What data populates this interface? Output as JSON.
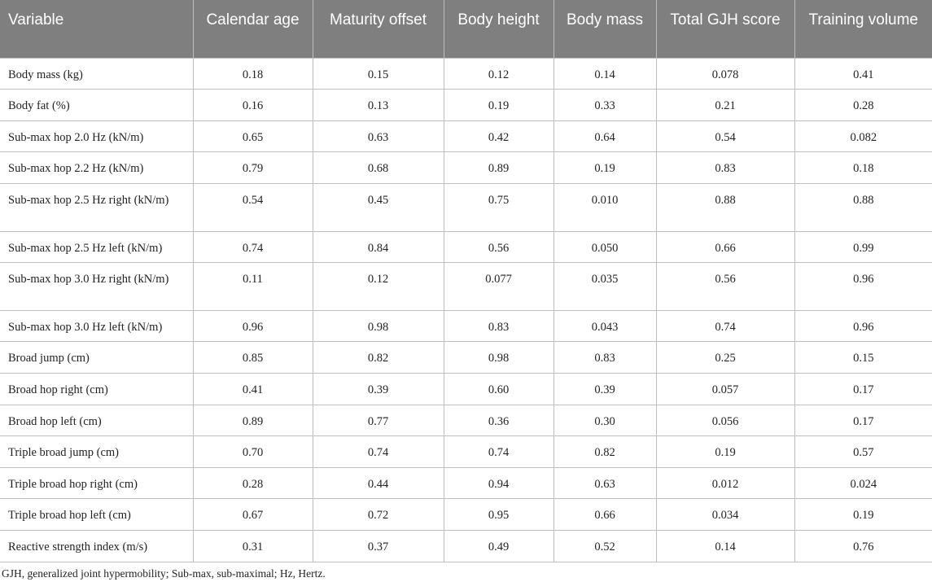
{
  "columns": [
    "Variable",
    "Calendar age",
    "Maturity offset",
    "Body height",
    "Body mass",
    "Total GJH score",
    "Training volume"
  ],
  "rows": [
    {
      "label": "Body mass (kg)",
      "values": [
        "0.18",
        "0.15",
        "0.12",
        "0.14",
        "0.078",
        "0.41"
      ]
    },
    {
      "label": "Body fat (%)",
      "values": [
        "0.16",
        "0.13",
        "0.19",
        "0.33",
        "0.21",
        "0.28"
      ]
    },
    {
      "label": "Sub-max hop 2.0 Hz (kN/m)",
      "values": [
        "0.65",
        "0.63",
        "0.42",
        "0.64",
        "0.54",
        "0.082"
      ]
    },
    {
      "label": "Sub-max hop 2.2 Hz (kN/m)",
      "values": [
        "0.79",
        "0.68",
        "0.89",
        "0.19",
        "0.83",
        "0.18"
      ]
    },
    {
      "label": "Sub-max hop 2.5 Hz right (kN/m)",
      "values": [
        "0.54",
        "0.45",
        "0.75",
        "0.010",
        "0.88",
        "0.88"
      ]
    },
    {
      "label": "Sub-max hop 2.5 Hz left (kN/m)",
      "values": [
        "0.74",
        "0.84",
        "0.56",
        "0.050",
        "0.66",
        "0.99"
      ]
    },
    {
      "label": "Sub-max hop 3.0 Hz right (kN/m)",
      "values": [
        "0.11",
        "0.12",
        "0.077",
        "0.035",
        "0.56",
        "0.96"
      ]
    },
    {
      "label": "Sub-max hop 3.0 Hz left (kN/m)",
      "values": [
        "0.96",
        "0.98",
        "0.83",
        "0.043",
        "0.74",
        "0.96"
      ]
    },
    {
      "label": "Broad jump (cm)",
      "values": [
        "0.85",
        "0.82",
        "0.98",
        "0.83",
        "0.25",
        "0.15"
      ]
    },
    {
      "label": "Broad hop right (cm)",
      "values": [
        "0.41",
        "0.39",
        "0.60",
        "0.39",
        "0.057",
        "0.17"
      ]
    },
    {
      "label": "Broad hop left (cm)",
      "values": [
        "0.89",
        "0.77",
        "0.36",
        "0.30",
        "0.056",
        "0.17"
      ]
    },
    {
      "label": "Triple broad jump (cm)",
      "values": [
        "0.70",
        "0.74",
        "0.74",
        "0.82",
        "0.19",
        "0.57"
      ]
    },
    {
      "label": "Triple broad hop right (cm)",
      "values": [
        "0.28",
        "0.44",
        "0.94",
        "0.63",
        "0.012",
        "0.024"
      ]
    },
    {
      "label": "Triple broad hop left (cm)",
      "values": [
        "0.67",
        "0.72",
        "0.95",
        "0.66",
        "0.034",
        "0.19"
      ]
    },
    {
      "label": "Reactive strength index (m/s)",
      "values": [
        "0.31",
        "0.37",
        "0.49",
        "0.52",
        "0.14",
        "0.76"
      ]
    }
  ],
  "footnote": "GJH, generalized joint hypermobility; Sub-max, sub-maximal; Hz, Hertz.",
  "colors": {
    "header_background": "#7f7f7f",
    "header_text": "#ffffff",
    "grid_lines": "#bdbdbd"
  }
}
